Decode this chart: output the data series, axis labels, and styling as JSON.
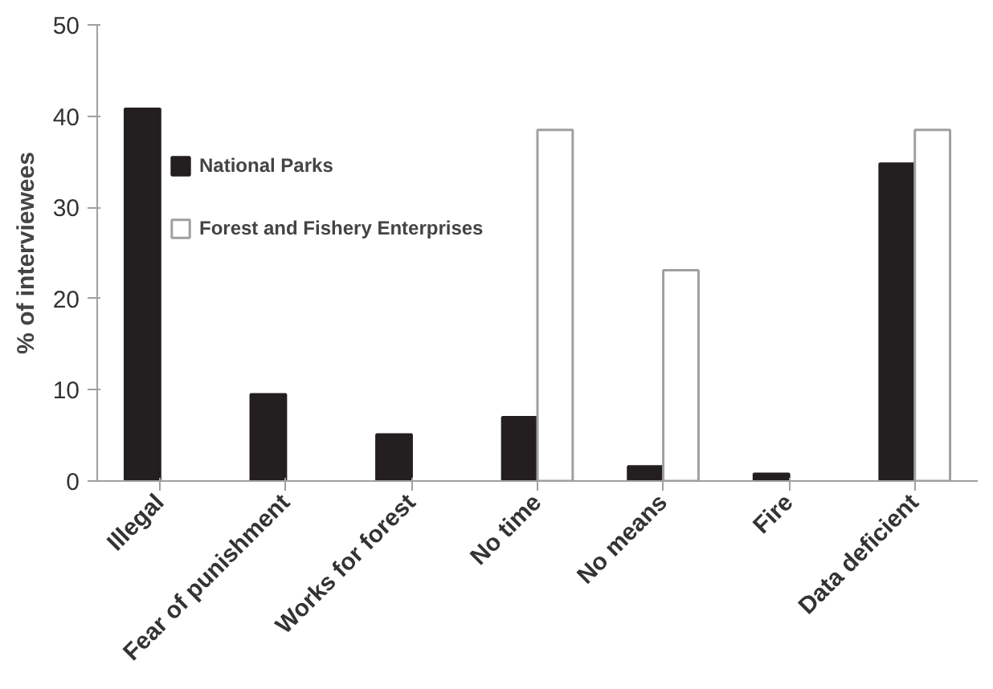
{
  "chart_data": {
    "type": "bar",
    "ylabel": "% of interviewees",
    "categories": [
      "Illegal",
      "Fear of punishment",
      "Works for forest",
      "No time",
      "No means",
      "Fire",
      "Data deficient"
    ],
    "series": [
      {
        "name": "National Parks",
        "color": "#231f20",
        "values": [
          40.8,
          9.5,
          5.1,
          7.0,
          1.6,
          0.8,
          34.8
        ]
      },
      {
        "name": "Forest and Fishery Enterprises",
        "color": "#ffffff",
        "values": [
          null,
          null,
          null,
          38.5,
          23.1,
          null,
          38.5
        ]
      }
    ],
    "ylim": [
      0,
      50
    ],
    "yticks": [
      0,
      10,
      20,
      30,
      40,
      50
    ],
    "grid": false,
    "legend": "top"
  }
}
